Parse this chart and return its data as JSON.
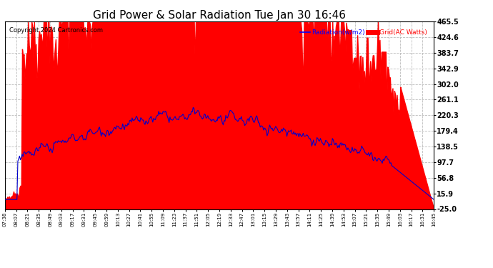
{
  "title": "Grid Power & Solar Radiation Tue Jan 30 16:46",
  "copyright": "Copyright 2024 Cartronics.com",
  "legend_radiation": "Radiation(w/m2)",
  "legend_grid": "Grid(AC Watts)",
  "ylabel_right_values": [
    465.5,
    424.6,
    383.7,
    342.9,
    302.0,
    261.1,
    220.3,
    179.4,
    138.5,
    97.7,
    56.8,
    15.9,
    -25.0
  ],
  "ymin": -25.0,
  "ymax": 465.5,
  "bg_color": "#ffffff",
  "grid_color": "#bbbbbb",
  "fill_color_grid": "#ff0000",
  "line_color_radiation": "#0000cc",
  "x_labels": [
    "07:38",
    "08:07",
    "08:21",
    "08:35",
    "08:49",
    "09:03",
    "09:17",
    "09:31",
    "09:45",
    "09:59",
    "10:13",
    "10:27",
    "10:41",
    "10:55",
    "11:09",
    "11:23",
    "11:37",
    "11:51",
    "12:05",
    "12:19",
    "12:33",
    "12:47",
    "13:01",
    "13:15",
    "13:29",
    "13:43",
    "13:57",
    "14:11",
    "14:25",
    "14:39",
    "14:53",
    "15:07",
    "15:21",
    "15:35",
    "15:49",
    "16:03",
    "16:17",
    "16:31",
    "16:45"
  ]
}
